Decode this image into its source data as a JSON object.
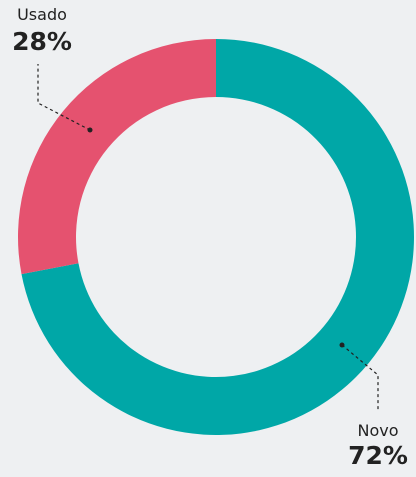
{
  "chart_data": {
    "type": "donut",
    "categories": [
      "Novo",
      "Usado"
    ],
    "values": [
      72,
      28
    ],
    "value_labels": [
      "72%",
      "28%"
    ],
    "colors": [
      "#00a7a7",
      "#e5526f"
    ]
  }
}
